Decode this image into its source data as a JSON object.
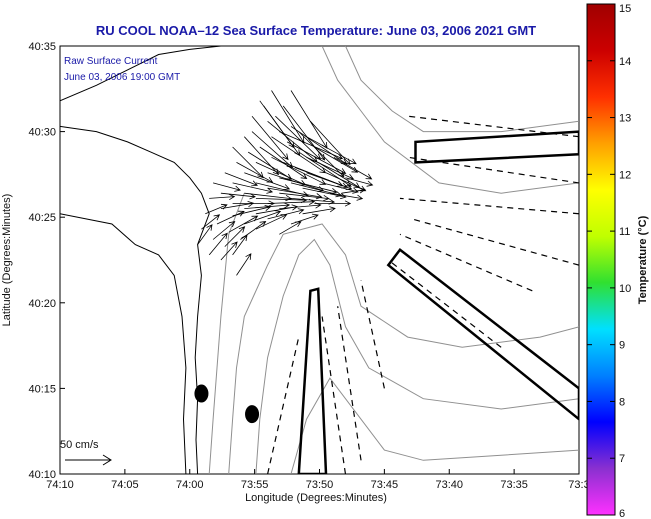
{
  "chart_data": {
    "type": "vector_field",
    "title": "RU COOL  NOAA–12  Sea Surface Temperature:  June 03, 2006 2021 GMT",
    "xlabel": "Longitude (Degrees:Minutes)",
    "ylabel": "Latitude (Degrees:Minutes)",
    "x_tick_labels": [
      "74:10",
      "74:05",
      "74:00",
      "73:55",
      "73:50",
      "73:45",
      "73:40",
      "73:35",
      "73:3"
    ],
    "y_tick_labels": [
      "40:10",
      "40:15",
      "40:20",
      "40:25",
      "40:30",
      "40:35"
    ],
    "xlim_deg": [
      -74.1667,
      -73.5
    ],
    "ylim_deg": [
      40.1667,
      40.5833
    ],
    "annotation_lines": [
      "Raw Surface Current",
      "June 03, 2006 19:00 GMT"
    ],
    "scale_label": "50 cm/s",
    "colorbar": {
      "label": "Temperature (°C)",
      "min": 6,
      "max": 15,
      "tick_labels": [
        "6",
        "7",
        "8",
        "9",
        "10",
        "11",
        "12",
        "13",
        "14",
        "15"
      ],
      "colors": [
        "#ff30ff",
        "#8a30d0",
        "#0000ff",
        "#0080ff",
        "#00e0ff",
        "#30e030",
        "#c0ff00",
        "#ffff00",
        "#ffa000",
        "#ff3000",
        "#cc0000",
        "#a00000"
      ]
    },
    "vectors_sampled": [
      [
        -73.895,
        40.495,
        60,
        -40
      ],
      [
        -73.9,
        40.51,
        55,
        -45
      ],
      [
        -73.885,
        40.5,
        70,
        -30
      ],
      [
        -73.875,
        40.49,
        65,
        -35
      ],
      [
        -73.86,
        40.48,
        58,
        -38
      ],
      [
        -73.905,
        40.525,
        40,
        -55
      ],
      [
        -73.89,
        40.515,
        50,
        -48
      ],
      [
        -73.87,
        40.505,
        62,
        -42
      ],
      [
        -73.85,
        40.495,
        55,
        -30
      ],
      [
        -73.84,
        40.485,
        48,
        -28
      ],
      [
        -73.92,
        40.5,
        45,
        -40
      ],
      [
        -73.91,
        40.485,
        52,
        -35
      ],
      [
        -73.895,
        40.475,
        60,
        -30
      ],
      [
        -73.88,
        40.47,
        66,
        -26
      ],
      [
        -73.865,
        40.465,
        58,
        -22
      ],
      [
        -73.85,
        40.46,
        50,
        -18
      ],
      [
        -73.835,
        40.47,
        46,
        -28
      ],
      [
        -73.925,
        40.48,
        48,
        -30
      ],
      [
        -73.915,
        40.47,
        55,
        -25
      ],
      [
        -73.9,
        40.46,
        62,
        -20
      ],
      [
        -73.885,
        40.455,
        64,
        -16
      ],
      [
        -73.87,
        40.45,
        56,
        -14
      ],
      [
        -73.855,
        40.445,
        48,
        -10
      ],
      [
        -73.94,
        40.47,
        40,
        -22
      ],
      [
        -73.93,
        40.46,
        50,
        -18
      ],
      [
        -73.915,
        40.45,
        58,
        -14
      ],
      [
        -73.9,
        40.445,
        60,
        -10
      ],
      [
        -73.885,
        40.44,
        55,
        -6
      ],
      [
        -73.87,
        40.435,
        48,
        -4
      ],
      [
        -73.955,
        40.46,
        36,
        -14
      ],
      [
        -73.945,
        40.45,
        44,
        -10
      ],
      [
        -73.93,
        40.44,
        52,
        -6
      ],
      [
        -73.915,
        40.435,
        56,
        -2
      ],
      [
        -73.9,
        40.43,
        52,
        2
      ],
      [
        -73.885,
        40.425,
        46,
        4
      ],
      [
        -73.97,
        40.45,
        30,
        -8
      ],
      [
        -73.96,
        40.44,
        38,
        -4
      ],
      [
        -73.945,
        40.43,
        46,
        0
      ],
      [
        -73.93,
        40.425,
        50,
        4
      ],
      [
        -73.915,
        40.42,
        46,
        8
      ],
      [
        -73.9,
        40.415,
        40,
        10
      ],
      [
        -73.975,
        40.435,
        28,
        2
      ],
      [
        -73.96,
        40.425,
        36,
        6
      ],
      [
        -73.945,
        40.418,
        42,
        10
      ],
      [
        -73.93,
        40.41,
        40,
        14
      ],
      [
        -73.915,
        40.405,
        34,
        16
      ],
      [
        -73.98,
        40.42,
        24,
        10
      ],
      [
        -73.965,
        40.41,
        30,
        14
      ],
      [
        -73.95,
        40.402,
        32,
        18
      ],
      [
        -73.935,
        40.395,
        28,
        20
      ],
      [
        -73.985,
        40.405,
        20,
        16
      ],
      [
        -73.97,
        40.395,
        24,
        20
      ],
      [
        -73.955,
        40.388,
        22,
        22
      ],
      [
        -73.96,
        40.375,
        18,
        20
      ],
      [
        -73.945,
        40.38,
        16,
        22
      ],
      [
        -73.975,
        40.38,
        20,
        24
      ],
      [
        -73.83,
        40.45,
        40,
        -10
      ],
      [
        -73.82,
        40.44,
        36,
        -6
      ],
      [
        -73.84,
        40.43,
        40,
        0
      ],
      [
        -73.855,
        40.42,
        36,
        6
      ],
      [
        -73.87,
        40.41,
        30,
        10
      ],
      [
        -73.885,
        40.4,
        24,
        14
      ],
      [
        -73.825,
        40.46,
        44,
        -20
      ],
      [
        -73.815,
        40.475,
        42,
        -24
      ],
      [
        -73.86,
        40.5,
        50,
        -50
      ],
      [
        -73.845,
        40.51,
        44,
        -48
      ],
      [
        -73.88,
        40.525,
        46,
        -60
      ],
      [
        -73.87,
        40.54,
        40,
        -64
      ],
      [
        -73.895,
        40.54,
        36,
        -58
      ],
      [
        -73.91,
        40.53,
        38,
        -52
      ],
      [
        -73.92,
        40.515,
        40,
        -48
      ],
      [
        -73.93,
        40.495,
        38,
        -42
      ],
      [
        -73.945,
        40.485,
        34,
        -34
      ],
      [
        -73.85,
        40.475,
        52,
        -24
      ],
      [
        -73.8,
        40.455,
        30,
        -8
      ],
      [
        -73.805,
        40.44,
        26,
        4
      ],
      [
        -73.99,
        40.39,
        16,
        22
      ],
      [
        -73.94,
        40.36,
        16,
        24
      ]
    ],
    "dashed_segments": [
      [
        [
          -73.9,
          40.1667
        ],
        [
          -73.86,
          40.3
        ]
      ],
      [
        [
          -73.8,
          40.1667
        ],
        [
          -73.83,
          40.32
        ]
      ],
      [
        [
          -73.78,
          40.18
        ],
        [
          -73.81,
          40.33
        ]
      ],
      [
        [
          -73.75,
          40.25
        ],
        [
          -73.78,
          40.355
        ]
      ],
      [
        [
          -73.6,
          40.29
        ],
        [
          -73.745,
          40.375
        ]
      ],
      [
        [
          -73.56,
          40.345
        ],
        [
          -73.73,
          40.4
        ]
      ],
      [
        [
          -73.5,
          40.37
        ],
        [
          -73.715,
          40.415
        ]
      ],
      [
        [
          -73.5,
          40.42
        ],
        [
          -73.73,
          40.435
        ]
      ],
      [
        [
          -73.5,
          40.45
        ],
        [
          -73.72,
          40.475
        ]
      ],
      [
        [
          -73.5,
          40.495
        ],
        [
          -73.72,
          40.515
        ]
      ]
    ],
    "boxes": [
      [
        [
          -73.86,
          40.1667
        ],
        [
          -73.845,
          40.345
        ],
        [
          -73.835,
          40.347
        ],
        [
          -73.825,
          40.1667
        ]
      ],
      [
        [
          -73.71,
          40.47
        ],
        [
          -73.71,
          40.49
        ],
        [
          -73.5,
          40.5
        ],
        [
          -73.5,
          40.478
        ]
      ],
      [
        [
          -73.745,
          40.37
        ],
        [
          -73.73,
          40.385
        ],
        [
          -73.5,
          40.25
        ],
        [
          -73.5,
          40.22
        ]
      ]
    ],
    "land_dots": [
      [
        -73.985,
        40.245
      ],
      [
        -73.92,
        40.225
      ]
    ]
  }
}
